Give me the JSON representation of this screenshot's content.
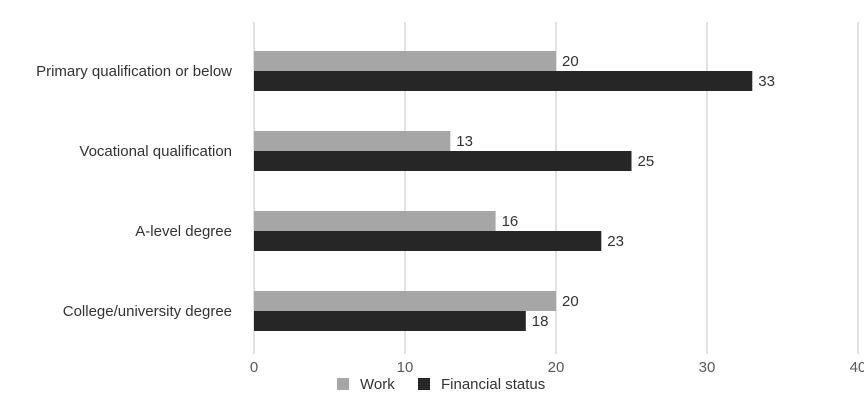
{
  "chart_data": {
    "type": "bar",
    "orientation": "horizontal",
    "categories": [
      "Primary qualification or below",
      "Vocational qualification",
      "A-level degree",
      "College/university degree"
    ],
    "series": [
      {
        "name": "Work",
        "values": [
          20,
          13,
          16,
          20
        ],
        "color": "#a6a6a6"
      },
      {
        "name": "Financial status",
        "values": [
          33,
          25,
          23,
          18
        ],
        "color": "#262626"
      }
    ],
    "xticks": [
      "0",
      "10",
      "20",
      "30",
      "40"
    ],
    "xlim": [
      0,
      40
    ],
    "grid": true,
    "legend_position": "bottom",
    "title": "",
    "xlabel": "",
    "ylabel": ""
  }
}
